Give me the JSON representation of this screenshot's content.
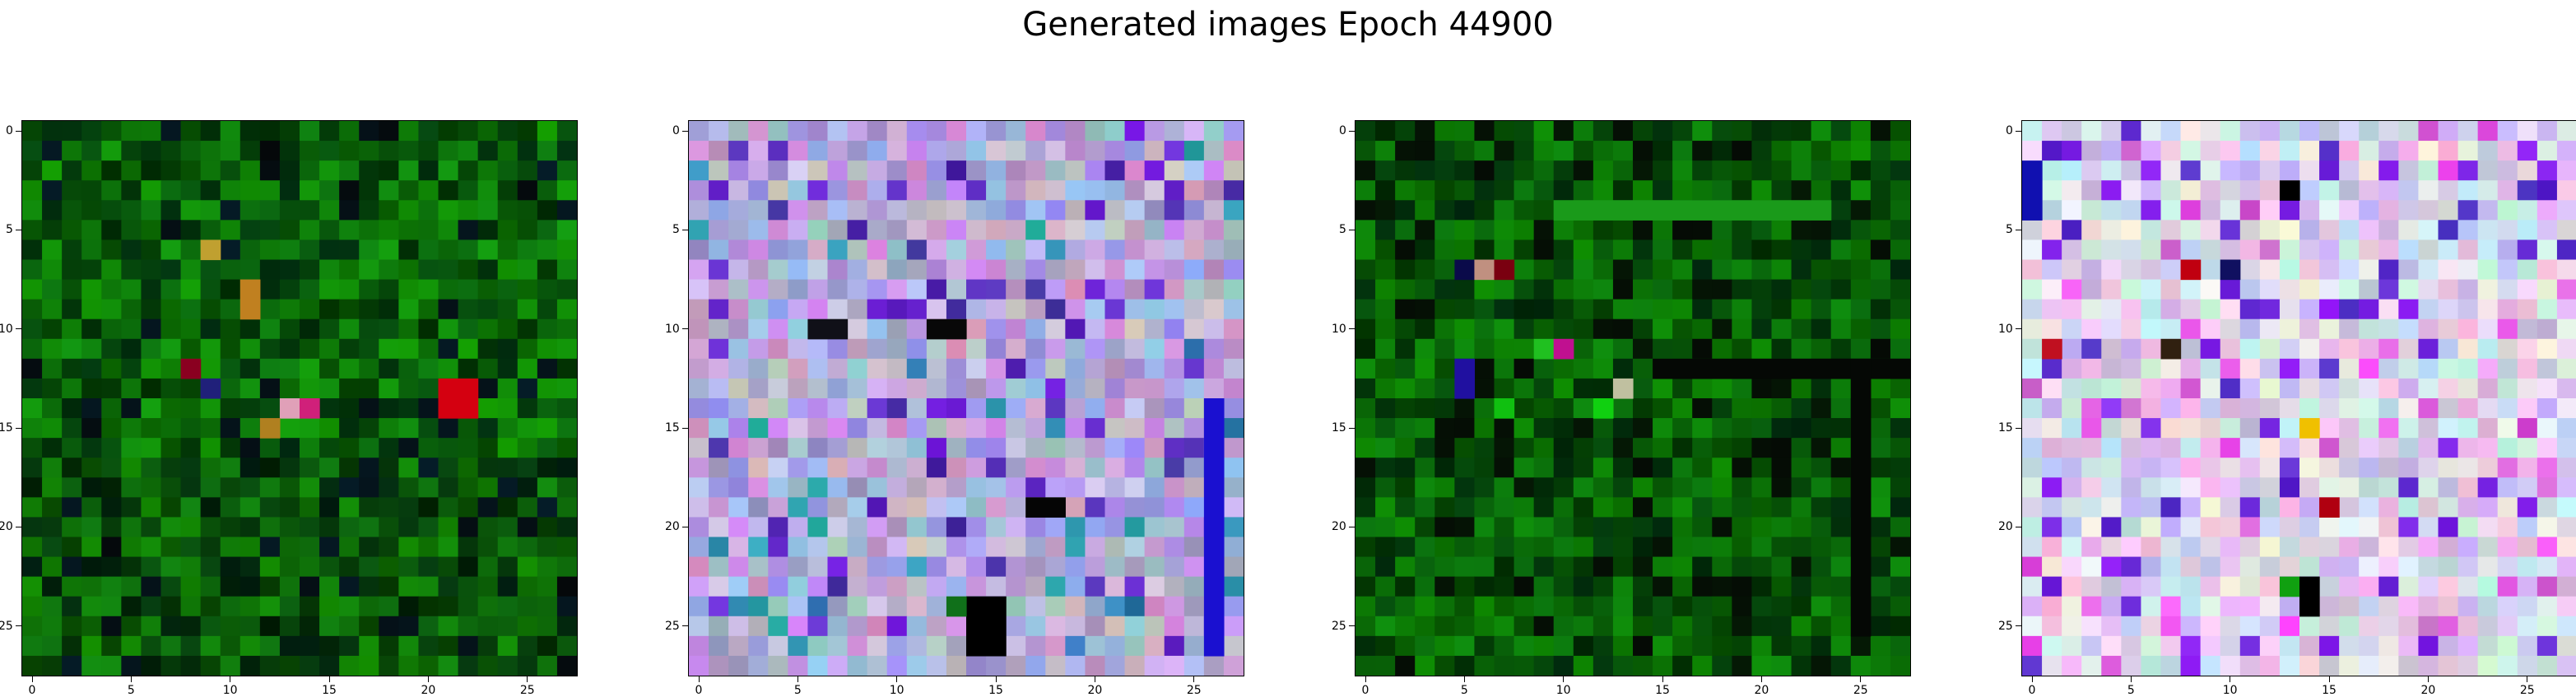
{
  "figure": {
    "title": "Generated images Epoch 44900"
  },
  "chart_data": [
    {
      "type": "heatmap",
      "title": "",
      "grid": false,
      "size": 28,
      "xticks": [
        0,
        5,
        10,
        15,
        20,
        25
      ],
      "yticks": [
        0,
        5,
        10,
        15,
        20,
        25
      ],
      "xlim": [
        -0.5,
        27.5
      ],
      "ylim": [
        27.5,
        -0.5
      ],
      "palette": "green",
      "seed": 11,
      "features": [
        {
          "row": 13,
          "col": 21,
          "h": 2,
          "w": 2,
          "color": "#d40010"
        },
        {
          "row": 14,
          "col": 13,
          "h": 1,
          "w": 1,
          "color": "#e0a0b8"
        },
        {
          "row": 14,
          "col": 14,
          "h": 1,
          "w": 1,
          "color": "#d0207a"
        },
        {
          "row": 15,
          "col": 12,
          "h": 1,
          "w": 1,
          "color": "#b08020"
        },
        {
          "row": 6,
          "col": 9,
          "h": 1,
          "w": 1,
          "color": "#c0a030"
        },
        {
          "row": 8,
          "col": 11,
          "h": 2,
          "w": 1,
          "color": "#c08020"
        },
        {
          "row": 12,
          "col": 8,
          "h": 1,
          "w": 1,
          "color": "#8a0020"
        },
        {
          "row": 13,
          "col": 9,
          "h": 1,
          "w": 1,
          "color": "#20207a"
        }
      ]
    },
    {
      "type": "heatmap",
      "title": "",
      "grid": false,
      "size": 28,
      "xticks": [
        0,
        5,
        10,
        15,
        20,
        25
      ],
      "yticks": [
        0,
        5,
        10,
        15,
        20,
        25
      ],
      "xlim": [
        -0.5,
        27.5
      ],
      "ylim": [
        27.5,
        -0.5
      ],
      "palette": "pastel-violet",
      "seed": 23,
      "features": [
        {
          "row": 10,
          "col": 6,
          "h": 1,
          "w": 2,
          "color": "#101018"
        },
        {
          "row": 10,
          "col": 12,
          "h": 1,
          "w": 2,
          "color": "#080808"
        },
        {
          "row": 19,
          "col": 17,
          "h": 1,
          "w": 2,
          "color": "#050505"
        },
        {
          "row": 24,
          "col": 14,
          "h": 3,
          "w": 2,
          "color": "#000000"
        },
        {
          "row": 24,
          "col": 13,
          "h": 1,
          "w": 1,
          "color": "#10701a"
        },
        {
          "row": 14,
          "col": 26,
          "h": 13,
          "w": 1,
          "color": "#1a10d0"
        }
      ]
    },
    {
      "type": "heatmap",
      "title": "",
      "grid": false,
      "size": 28,
      "xticks": [
        0,
        5,
        10,
        15,
        20,
        25
      ],
      "yticks": [
        0,
        5,
        10,
        15,
        20,
        25
      ],
      "xlim": [
        -0.5,
        27.5
      ],
      "ylim": [
        27.5,
        -0.5
      ],
      "palette": "green-dark",
      "seed": 37,
      "features": [
        {
          "row": 4,
          "col": 10,
          "h": 1,
          "w": 14,
          "color": "#1a9a1a"
        },
        {
          "row": 7,
          "col": 5,
          "h": 1,
          "w": 1,
          "color": "#0a0a4a"
        },
        {
          "row": 7,
          "col": 6,
          "h": 1,
          "w": 1,
          "color": "#c09080"
        },
        {
          "row": 7,
          "col": 7,
          "h": 1,
          "w": 1,
          "color": "#7a0010"
        },
        {
          "row": 11,
          "col": 9,
          "h": 1,
          "w": 1,
          "color": "#20c020"
        },
        {
          "row": 11,
          "col": 10,
          "h": 1,
          "w": 1,
          "color": "#c01090"
        },
        {
          "row": 13,
          "col": 13,
          "h": 1,
          "w": 1,
          "color": "#c0c0a0"
        },
        {
          "row": 12,
          "col": 5,
          "h": 2,
          "w": 1,
          "color": "#2010a0"
        },
        {
          "row": 14,
          "col": 12,
          "h": 1,
          "w": 1,
          "color": "#10d010"
        },
        {
          "row": 14,
          "col": 7,
          "h": 1,
          "w": 1,
          "color": "#10c010"
        },
        {
          "row": 12,
          "col": 15,
          "h": 1,
          "w": 13,
          "color": "#050805"
        },
        {
          "row": 12,
          "col": 25,
          "h": 14,
          "w": 1,
          "color": "#050805"
        }
      ]
    },
    {
      "type": "heatmap",
      "title": "",
      "grid": false,
      "size": 28,
      "xticks": [
        0,
        5,
        10,
        15,
        20,
        25
      ],
      "yticks": [
        0,
        5,
        10,
        15,
        20,
        25
      ],
      "xlim": [
        -0.5,
        27.5
      ],
      "ylim": [
        27.5,
        -0.5
      ],
      "palette": "pastel-bright",
      "seed": 51,
      "features": [
        {
          "row": 2,
          "col": 0,
          "h": 3,
          "w": 1,
          "color": "#1010b0"
        },
        {
          "row": 3,
          "col": 13,
          "h": 1,
          "w": 1,
          "color": "#000000"
        },
        {
          "row": 7,
          "col": 8,
          "h": 1,
          "w": 1,
          "color": "#c00010"
        },
        {
          "row": 7,
          "col": 10,
          "h": 1,
          "w": 1,
          "color": "#101060"
        },
        {
          "row": 11,
          "col": 1,
          "h": 1,
          "w": 1,
          "color": "#c01020"
        },
        {
          "row": 11,
          "col": 7,
          "h": 1,
          "w": 1,
          "color": "#302010"
        },
        {
          "row": 15,
          "col": 14,
          "h": 1,
          "w": 1,
          "color": "#f0c000"
        },
        {
          "row": 19,
          "col": 15,
          "h": 1,
          "w": 1,
          "color": "#b00010"
        },
        {
          "row": 23,
          "col": 13,
          "h": 1,
          "w": 1,
          "color": "#10a010"
        },
        {
          "row": 23,
          "col": 14,
          "h": 2,
          "w": 1,
          "color": "#000000"
        }
      ]
    }
  ]
}
